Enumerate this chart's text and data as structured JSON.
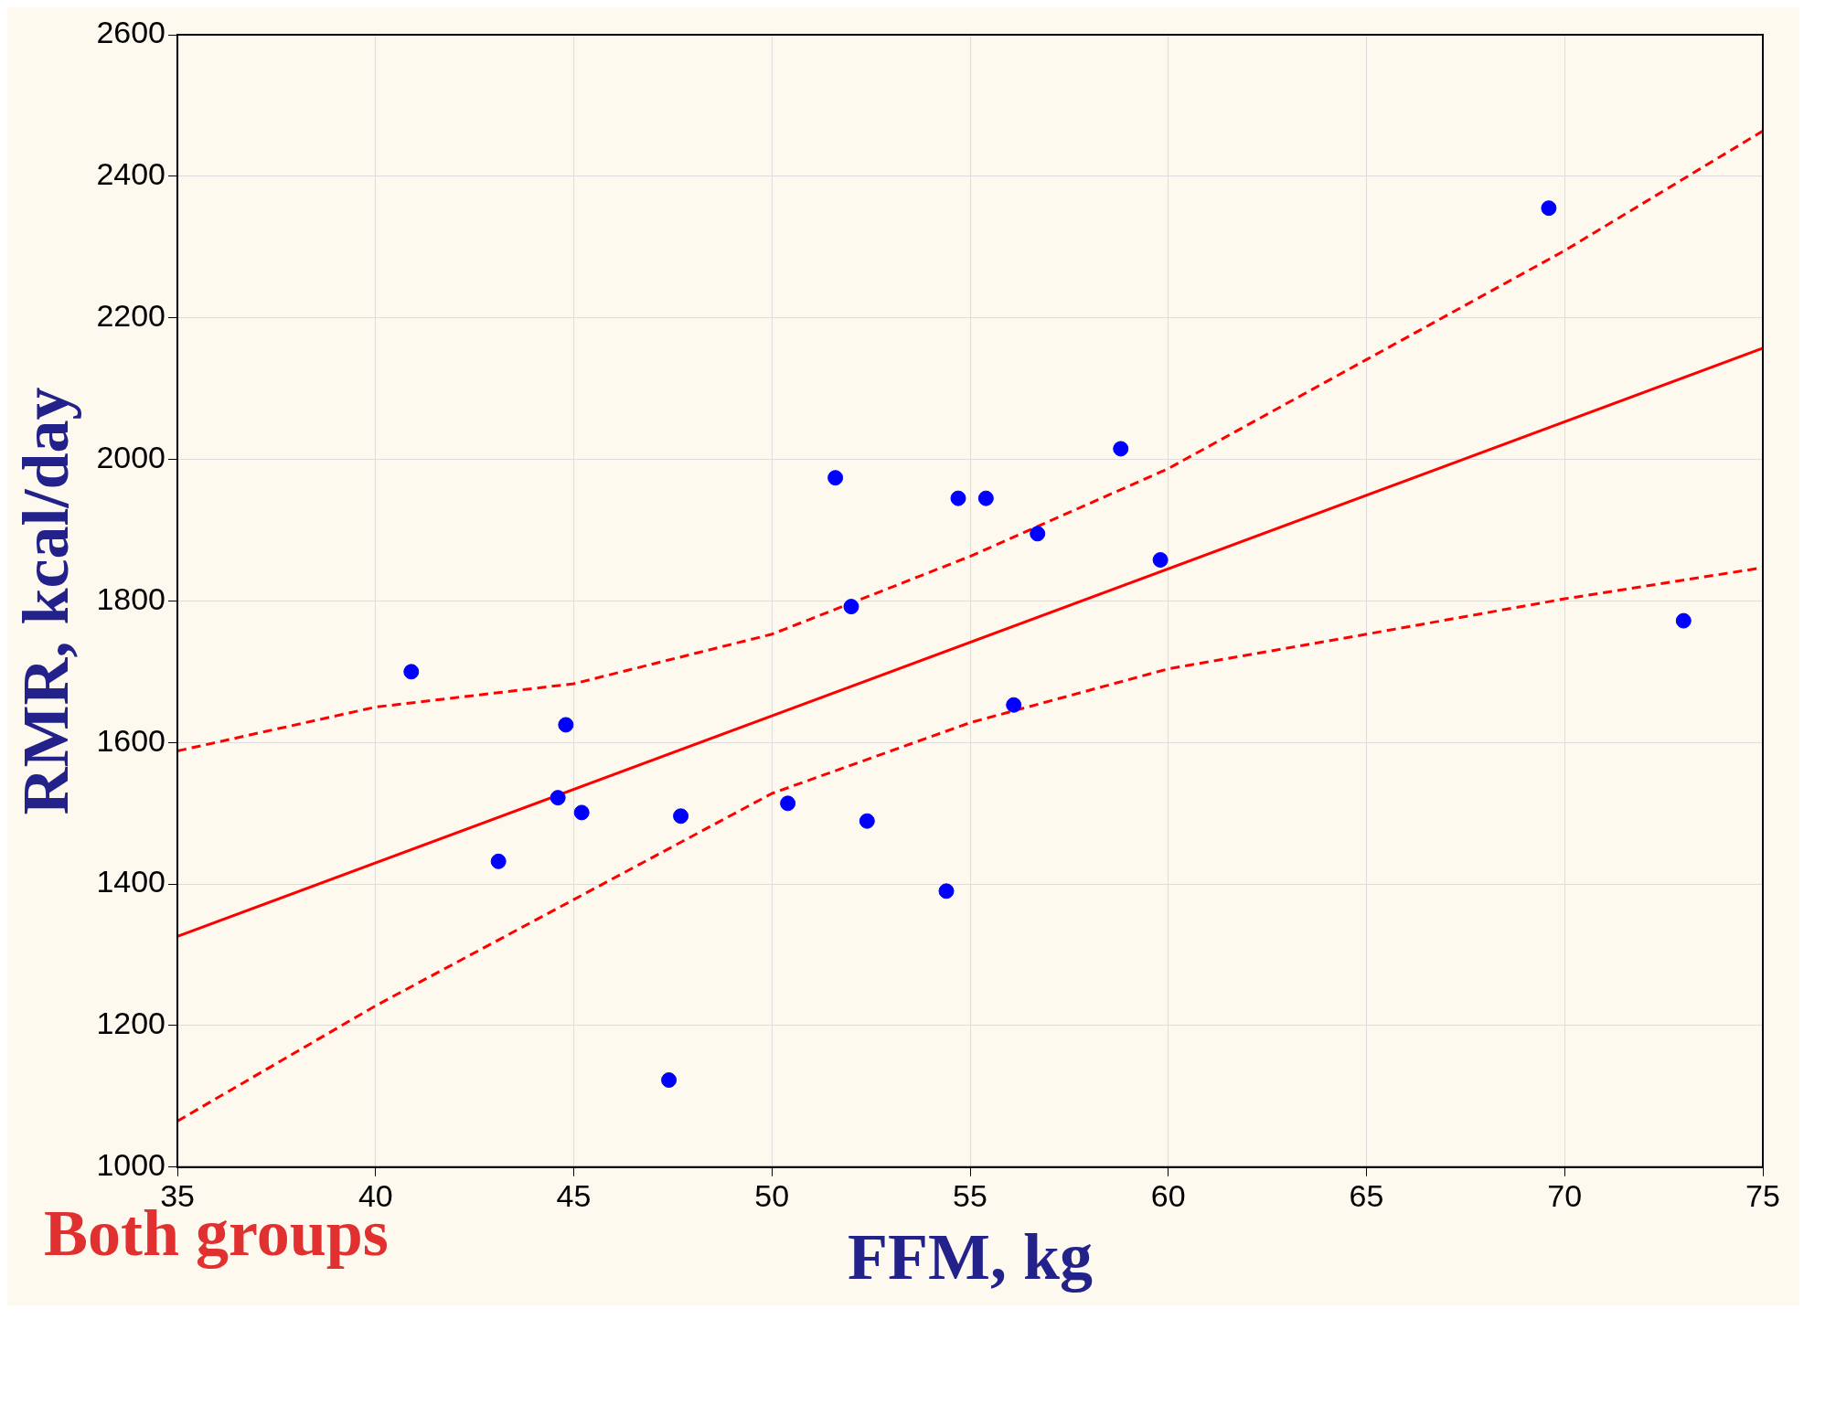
{
  "chart_data": {
    "type": "scatter",
    "xlabel": "FFM, kg",
    "ylabel": "RMR, kcal/day",
    "annotations": [
      "Both groups"
    ],
    "xlim": [
      35,
      75
    ],
    "xticks": [
      35,
      40,
      45,
      50,
      55,
      60,
      65,
      70,
      75
    ],
    "ylim": [
      1000,
      2600
    ],
    "yticks": [
      1000,
      1200,
      1400,
      1600,
      1800,
      2000,
      2200,
      2400,
      2600
    ],
    "grid": true,
    "marker": "circle",
    "series": [
      {
        "type": "scatter",
        "color": "#0000ff",
        "x": [
          40.9,
          43.1,
          44.6,
          44.8,
          45.2,
          47.4,
          47.7,
          50.4,
          51.6,
          52.0,
          52.4,
          54.4,
          54.7,
          55.4,
          56.1,
          56.7,
          58.8,
          59.8,
          69.6,
          73.0
        ],
        "values": [
          1700,
          1432,
          1522,
          1625,
          1501,
          1123,
          1496,
          1514,
          1974,
          1792,
          1489,
          1390,
          1945,
          1945,
          1653,
          1895,
          2015,
          1858,
          2355,
          1772
        ]
      },
      {
        "type": "line",
        "color": "#ff0000",
        "line_style": "solid",
        "marker": "none",
        "x": [
          35,
          75
        ],
        "values": [
          1326,
          2157
        ]
      },
      {
        "type": "line",
        "color": "#ff0000",
        "line_style": "dashed",
        "marker": "none",
        "x": [
          35,
          40,
          45,
          50,
          55,
          60,
          65,
          70,
          75
        ],
        "values": [
          1588,
          1650,
          1683,
          1753,
          1863,
          1987,
          2141,
          2295,
          2464
        ]
      },
      {
        "type": "line",
        "color": "#ff0000",
        "line_style": "dashed",
        "marker": "none",
        "x": [
          35,
          40,
          45,
          50,
          55,
          60,
          65,
          70,
          75
        ],
        "values": [
          1065,
          1228,
          1378,
          1528,
          1628,
          1704,
          1753,
          1803,
          1847
        ]
      }
    ]
  }
}
